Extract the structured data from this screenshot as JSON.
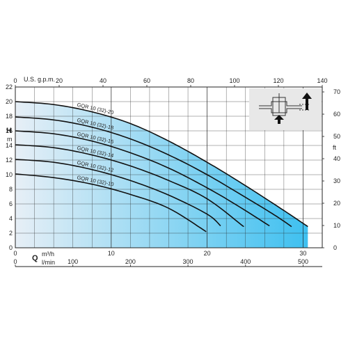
{
  "colors": {
    "fill_light": "#e7eff6",
    "fill_dark": "#3ec0f0",
    "curve": "#111111",
    "grid": "#222222",
    "inset_bg": "#e8e8e8"
  },
  "labels": {
    "h_letter": "H",
    "h_unit": "m",
    "ft_unit": "ft",
    "usgpm_unit": "U.S. g.p.m.",
    "q_letter": "Q",
    "m3h_unit": "m³/h",
    "lmin_unit": "l/min"
  },
  "inset_icon": "pump-flow-diagram-icon",
  "chart_data": {
    "type": "line",
    "x": {
      "label": "Q m³/h",
      "range": [
        0,
        32
      ],
      "ticks": [
        0,
        10,
        20,
        30
      ]
    },
    "y": {
      "label": "H m",
      "range": [
        0,
        22
      ],
      "ticks": [
        0,
        2,
        4,
        6,
        8,
        10,
        12,
        14,
        16,
        18,
        20,
        22
      ]
    },
    "x_top": {
      "label": "U.S. g.p.m.",
      "range": [
        0,
        140
      ],
      "ticks": [
        0,
        20,
        40,
        60,
        80,
        100,
        120,
        140
      ]
    },
    "x_bottom2": {
      "label": "l/min",
      "range": [
        0,
        533.3
      ],
      "ticks": [
        0,
        100,
        200,
        300,
        400,
        500
      ]
    },
    "y_right": {
      "label": "ft",
      "range": [
        0,
        72.2
      ],
      "ticks": [
        0,
        10,
        20,
        30,
        40,
        50,
        60,
        70
      ]
    },
    "grid": true,
    "series": [
      {
        "name": "GQR 10 (32)-20",
        "points": [
          [
            0,
            20.0
          ],
          [
            4,
            19.6
          ],
          [
            8,
            18.6
          ],
          [
            12,
            17.0
          ],
          [
            16,
            14.6
          ],
          [
            20,
            11.7
          ],
          [
            24,
            8.5
          ],
          [
            28,
            5.1
          ],
          [
            30.5,
            2.9
          ]
        ],
        "label_x": 6.5
      },
      {
        "name": "GQR 10 (32)-18",
        "points": [
          [
            0,
            17.9
          ],
          [
            4,
            17.5
          ],
          [
            8,
            16.5
          ],
          [
            12,
            14.9
          ],
          [
            16,
            12.7
          ],
          [
            20,
            10.0
          ],
          [
            24,
            6.9
          ],
          [
            27,
            4.5
          ],
          [
            28.8,
            2.9
          ]
        ],
        "label_x": 6.5
      },
      {
        "name": "GQR 10 (32)-16",
        "points": [
          [
            0,
            16.0
          ],
          [
            4,
            15.6
          ],
          [
            8,
            14.6
          ],
          [
            12,
            13.0
          ],
          [
            16,
            10.9
          ],
          [
            20,
            8.2
          ],
          [
            23,
            5.9
          ],
          [
            26.5,
            3.0
          ]
        ],
        "label_x": 6.5
      },
      {
        "name": "GQR 10 (32)-14",
        "points": [
          [
            0,
            14.1
          ],
          [
            4,
            13.7
          ],
          [
            8,
            12.7
          ],
          [
            12,
            11.2
          ],
          [
            16,
            9.2
          ],
          [
            20,
            6.7
          ],
          [
            23.8,
            2.9
          ]
        ],
        "label_x": 6.5
      },
      {
        "name": "GQR 10 (32)-12",
        "points": [
          [
            0,
            12.1
          ],
          [
            4,
            11.7
          ],
          [
            8,
            10.7
          ],
          [
            12,
            9.2
          ],
          [
            16,
            7.2
          ],
          [
            20,
            4.6
          ],
          [
            21.4,
            3.0
          ]
        ],
        "label_x": 6.5
      },
      {
        "name": "GQR 10 (32)-10",
        "points": [
          [
            0,
            10.1
          ],
          [
            4,
            9.6
          ],
          [
            8,
            8.7
          ],
          [
            12,
            7.3
          ],
          [
            16,
            5.4
          ],
          [
            19.9,
            2.2
          ]
        ],
        "label_x": 6.5
      }
    ]
  }
}
